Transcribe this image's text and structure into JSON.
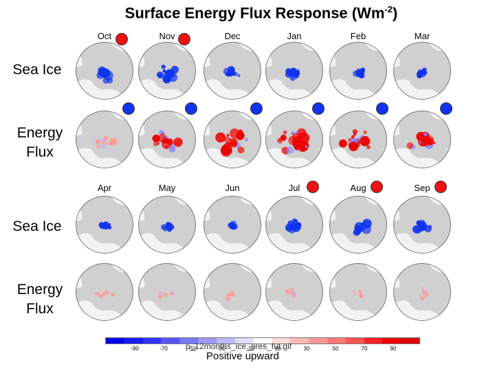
{
  "title": {
    "main": "Surface Energy Flux Response (Wm",
    "sup": "-2",
    "close": ")"
  },
  "row_labels": [
    {
      "line1": "Sea Ice",
      "line2": ""
    },
    {
      "line1": "Energy",
      "line2": "Flux"
    },
    {
      "line1": "Sea Ice",
      "line2": ""
    },
    {
      "line1": "Energy",
      "line2": "Flux"
    }
  ],
  "months_top": [
    "Oct",
    "Nov",
    "Dec",
    "Jan",
    "Feb",
    "Mar"
  ],
  "months_bottom": [
    "Apr",
    "May",
    "Jun",
    "Jul",
    "Aug",
    "Sep"
  ],
  "indicators": {
    "top_red": [
      "Oct",
      "Nov"
    ],
    "top_blue": [
      "Oct",
      "Nov",
      "Dec",
      "Jan",
      "Feb",
      "Mar"
    ],
    "bottom_red": [
      "Jul",
      "Aug",
      "Sep"
    ]
  },
  "colors": {
    "red": "#ee1111",
    "blue": "#1133ee",
    "map_gray": "#d0d0d0",
    "land": "#f2f2f2"
  },
  "colorbar": {
    "colors": [
      "#0000ee",
      "#1a1aff",
      "#3333ff",
      "#5555ff",
      "#7777ff",
      "#9999ff",
      "#bbbbff",
      "#ddddff",
      "#ffffff",
      "#ffdddd",
      "#ffbbbb",
      "#ff9999",
      "#ff7777",
      "#ff5555",
      "#ff2222",
      "#ee0000",
      "#dd0000"
    ],
    "tick_labels": [
      "-90",
      "-70",
      "-50",
      "-30",
      "-10",
      "10",
      "30",
      "50",
      "70",
      "90"
    ]
  },
  "watermark": "p_12months_ice_pres_fut.gif",
  "caption": "Positive upward"
}
